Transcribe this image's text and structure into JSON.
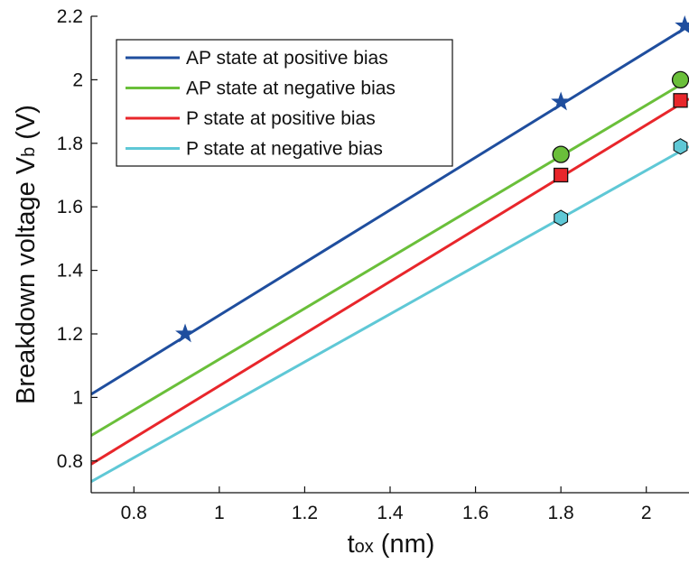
{
  "chart_data": {
    "type": "line",
    "title": "",
    "xlabel": {
      "main": "t",
      "sub": "ox",
      "unit": " (nm)"
    },
    "ylabel": {
      "main": "Breakdown voltage V",
      "sub": "b",
      "unit": " (V)"
    },
    "xlim": [
      0.7,
      2.1
    ],
    "ylim": [
      0.7,
      2.2
    ],
    "xticks": [
      {
        "value": 0.8,
        "label": "0.8"
      },
      {
        "value": 1.0,
        "label": "1"
      },
      {
        "value": 1.2,
        "label": "1.2"
      },
      {
        "value": 1.4,
        "label": "1.4"
      },
      {
        "value": 1.6,
        "label": "1.6"
      },
      {
        "value": 1.8,
        "label": "1.8"
      },
      {
        "value": 2.0,
        "label": "2"
      }
    ],
    "yticks": [
      {
        "value": 0.8,
        "label": "0.8"
      },
      {
        "value": 1.0,
        "label": "1"
      },
      {
        "value": 1.2,
        "label": "1.2"
      },
      {
        "value": 1.4,
        "label": "1.4"
      },
      {
        "value": 1.6,
        "label": "1.6"
      },
      {
        "value": 1.8,
        "label": "1.8"
      },
      {
        "value": 2.0,
        "label": "2"
      },
      {
        "value": 2.2,
        "label": "2.2"
      }
    ],
    "grid": false,
    "legend_position": "top-left",
    "series": [
      {
        "name": "AP state at positive bias",
        "color": "#1f4e9e",
        "marker": "star",
        "marker_color": "#1f4e9e",
        "line": [
          [
            0.7,
            1.01
          ],
          [
            2.1,
            2.17
          ]
        ],
        "points": [
          [
            0.92,
            1.2
          ],
          [
            1.8,
            1.93
          ],
          [
            2.09,
            2.17
          ]
        ]
      },
      {
        "name": "AP state at negative bias",
        "color": "#6abf3a",
        "marker": "circle",
        "marker_color": "#6abf3a",
        "line": [
          [
            0.7,
            0.88
          ],
          [
            2.1,
            2.0
          ]
        ],
        "points": [
          [
            1.8,
            1.765
          ],
          [
            2.08,
            2.0
          ]
        ]
      },
      {
        "name": "P state at positive bias",
        "color": "#e8262b",
        "marker": "square",
        "marker_color": "#e8262b",
        "line": [
          [
            0.7,
            0.79
          ],
          [
            2.1,
            1.94
          ]
        ],
        "points": [
          [
            1.8,
            1.7
          ],
          [
            2.08,
            1.935
          ]
        ]
      },
      {
        "name": "P state at negative bias",
        "color": "#5fc8d6",
        "marker": "hexagon",
        "marker_color": "#5fc8d6",
        "line": [
          [
            0.7,
            0.735
          ],
          [
            2.1,
            1.79
          ]
        ],
        "points": [
          [
            1.8,
            1.565
          ],
          [
            2.08,
            1.79
          ]
        ]
      }
    ]
  }
}
